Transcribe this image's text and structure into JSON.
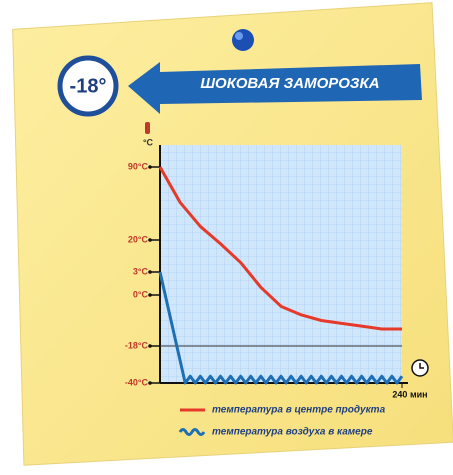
{
  "chart_data": {
    "type": "line",
    "badge": "-18°",
    "title": "ШОКОВАЯ ЗАМОРОЗКА",
    "y_label": "°C",
    "ylim": [
      -40,
      90
    ],
    "yticks": [
      {
        "value": 90,
        "label": "90°C"
      },
      {
        "value": 20,
        "label": "20°C"
      },
      {
        "value": 3,
        "label": "3°C"
      },
      {
        "value": 0,
        "label": "0°C"
      },
      {
        "value": -18,
        "label": "-18°C"
      },
      {
        "value": -40,
        "label": "-40°C"
      }
    ],
    "xlim": [
      0,
      240
    ],
    "xticks": [
      {
        "value": 240,
        "label": "240 мин"
      }
    ],
    "reference_line": -18,
    "series": [
      {
        "name": "температура в центре продукта",
        "color": "#e53a2a",
        "x": [
          0,
          20,
          40,
          60,
          80,
          100,
          120,
          140,
          160,
          180,
          200,
          220,
          240
        ],
        "values": [
          90,
          56,
          33,
          18,
          8,
          1,
          -4,
          -7,
          -9,
          -10,
          -11,
          -12,
          -12
        ]
      },
      {
        "name": "температура воздуха в камере",
        "color": "#1f6fb5",
        "x": [
          0,
          25,
          30,
          35,
          40,
          45,
          50,
          55,
          60,
          65,
          70,
          75,
          80,
          85,
          90,
          95,
          100,
          105,
          110,
          115,
          120,
          125,
          130,
          135,
          140,
          145,
          150,
          155,
          160,
          165,
          170,
          175,
          180,
          185,
          190,
          195,
          200,
          205,
          210,
          215,
          220,
          225,
          230,
          235,
          240
        ],
        "values": [
          3,
          -40,
          -36,
          -40,
          -36,
          -40,
          -36,
          -40,
          -36,
          -40,
          -36,
          -40,
          -36,
          -40,
          -36,
          -40,
          -36,
          -40,
          -36,
          -40,
          -36,
          -40,
          -36,
          -40,
          -36,
          -40,
          -36,
          -40,
          -36,
          -40,
          -36,
          -40,
          -36,
          -40,
          -36,
          -40,
          -36,
          -40,
          -36,
          -40,
          -36,
          -40,
          -36,
          -40,
          -36
        ]
      }
    ]
  }
}
